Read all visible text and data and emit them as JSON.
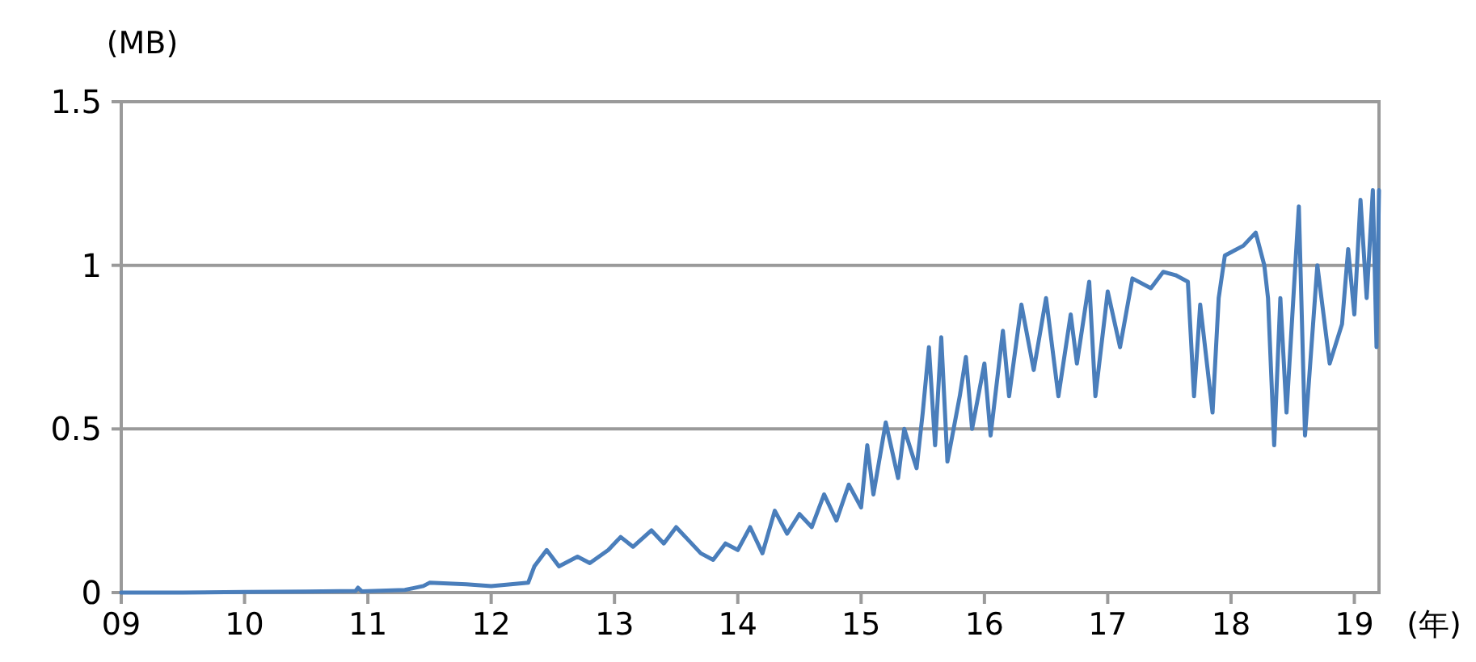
{
  "chart_data": {
    "type": "line",
    "xlabel": "(年)",
    "ylabel": "(MB)",
    "xlim": [
      2009,
      2019.2
    ],
    "ylim": [
      0,
      1.5
    ],
    "xticks": [
      {
        "value": 2009,
        "label": "09"
      },
      {
        "value": 2010,
        "label": "10"
      },
      {
        "value": 2011,
        "label": "11"
      },
      {
        "value": 2012,
        "label": "12"
      },
      {
        "value": 2013,
        "label": "13"
      },
      {
        "value": 2014,
        "label": "14"
      },
      {
        "value": 2015,
        "label": "15"
      },
      {
        "value": 2016,
        "label": "16"
      },
      {
        "value": 2017,
        "label": "17"
      },
      {
        "value": 2018,
        "label": "18"
      },
      {
        "value": 2019,
        "label": "19"
      }
    ],
    "yticks": [
      0,
      0.5,
      1,
      1.5
    ],
    "grid": "y",
    "marker": "none",
    "line_style": "solid",
    "x": [
      2009.0,
      2009.5,
      2010.0,
      2010.5,
      2010.9,
      2010.92,
      2010.95,
      2011.3,
      2011.45,
      2011.5,
      2011.8,
      2012.0,
      2012.3,
      2012.35,
      2012.45,
      2012.55,
      2012.7,
      2012.8,
      2012.95,
      2013.05,
      2013.15,
      2013.3,
      2013.4,
      2013.5,
      2013.6,
      2013.7,
      2013.8,
      2013.9,
      2014.0,
      2014.1,
      2014.2,
      2014.3,
      2014.4,
      2014.5,
      2014.6,
      2014.7,
      2014.8,
      2014.9,
      2015.0,
      2015.05,
      2015.1,
      2015.2,
      2015.3,
      2015.35,
      2015.45,
      2015.5,
      2015.55,
      2015.6,
      2015.65,
      2015.7,
      2015.8,
      2015.85,
      2015.9,
      2016.0,
      2016.05,
      2016.15,
      2016.2,
      2016.3,
      2016.4,
      2016.5,
      2016.6,
      2016.7,
      2016.75,
      2016.85,
      2016.9,
      2017.0,
      2017.1,
      2017.2,
      2017.35,
      2017.45,
      2017.55,
      2017.65,
      2017.7,
      2017.75,
      2017.85,
      2017.9,
      2017.95,
      2018.1,
      2018.2,
      2018.27,
      2018.3,
      2018.35,
      2018.4,
      2018.45,
      2018.55,
      2018.6,
      2018.7,
      2018.8,
      2018.9,
      2018.95,
      2019.0,
      2019.05,
      2019.1,
      2019.15,
      2019.18,
      2019.2
    ],
    "series": [
      {
        "color": "#4a7ebb",
        "values": [
          0.0,
          0.0,
          0.002,
          0.003,
          0.005,
          0.015,
          0.004,
          0.008,
          0.02,
          0.03,
          0.025,
          0.02,
          0.03,
          0.08,
          0.13,
          0.08,
          0.11,
          0.09,
          0.13,
          0.17,
          0.14,
          0.19,
          0.15,
          0.2,
          0.16,
          0.12,
          0.1,
          0.15,
          0.13,
          0.2,
          0.12,
          0.25,
          0.18,
          0.24,
          0.2,
          0.3,
          0.22,
          0.33,
          0.26,
          0.45,
          0.3,
          0.52,
          0.35,
          0.5,
          0.38,
          0.55,
          0.75,
          0.45,
          0.78,
          0.4,
          0.6,
          0.72,
          0.5,
          0.7,
          0.48,
          0.8,
          0.6,
          0.88,
          0.68,
          0.9,
          0.6,
          0.85,
          0.7,
          0.95,
          0.6,
          0.92,
          0.75,
          0.96,
          0.93,
          0.98,
          0.97,
          0.95,
          0.6,
          0.88,
          0.55,
          0.9,
          1.03,
          1.06,
          1.1,
          1.0,
          0.9,
          0.45,
          0.9,
          0.55,
          1.18,
          0.48,
          1.0,
          0.7,
          0.82,
          1.05,
          0.85,
          1.2,
          0.9,
          1.23,
          0.75,
          1.23
        ]
      }
    ]
  }
}
